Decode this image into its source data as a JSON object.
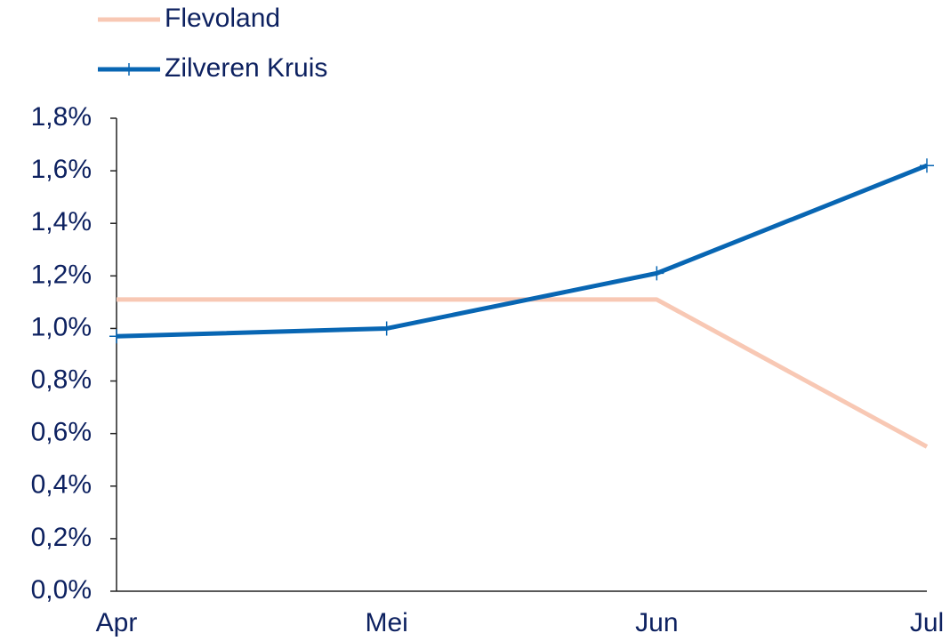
{
  "chart_data": {
    "type": "line",
    "categories": [
      "Apr",
      "Mei",
      "Jun",
      "Jul"
    ],
    "series": [
      {
        "name": "Flevoland",
        "color": "#f8c8b4",
        "marker": false,
        "values": [
          1.11,
          1.11,
          1.11,
          0.55
        ]
      },
      {
        "name": "Zilveren Kruis",
        "color": "#0866b3",
        "marker": true,
        "values": [
          0.97,
          1.0,
          1.21,
          1.62
        ]
      }
    ],
    "ylim": [
      0,
      1.8
    ],
    "yticks": [
      {
        "value": 0,
        "label": "0,0%"
      },
      {
        "value": 0.2,
        "label": "0,2%"
      },
      {
        "value": 0.4,
        "label": "0,4%"
      },
      {
        "value": 0.6,
        "label": "0,6%"
      },
      {
        "value": 0.8,
        "label": "0,8%"
      },
      {
        "value": 1.0,
        "label": "1,0%"
      },
      {
        "value": 1.2,
        "label": "1,2%"
      },
      {
        "value": 1.4,
        "label": "1,4%"
      },
      {
        "value": 1.6,
        "label": "1,6%"
      },
      {
        "value": 1.8,
        "label": "1,8%"
      }
    ],
    "grid": false,
    "legend": "top-left"
  }
}
